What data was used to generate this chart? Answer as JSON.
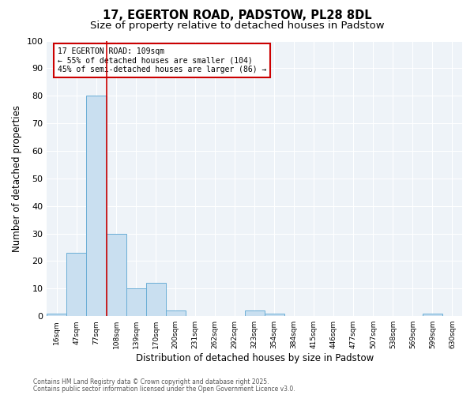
{
  "title1": "17, EGERTON ROAD, PADSTOW, PL28 8DL",
  "title2": "Size of property relative to detached houses in Padstow",
  "xlabel": "Distribution of detached houses by size in Padstow",
  "ylabel": "Number of detached properties",
  "bar_labels": [
    "16sqm",
    "47sqm",
    "77sqm",
    "108sqm",
    "139sqm",
    "170sqm",
    "200sqm",
    "231sqm",
    "262sqm",
    "292sqm",
    "323sqm",
    "354sqm",
    "384sqm",
    "415sqm",
    "446sqm",
    "477sqm",
    "507sqm",
    "538sqm",
    "569sqm",
    "599sqm",
    "630sqm"
  ],
  "bar_values": [
    1,
    23,
    80,
    30,
    10,
    12,
    2,
    0,
    0,
    0,
    2,
    1,
    0,
    0,
    0,
    0,
    0,
    0,
    0,
    1,
    0
  ],
  "bar_color": "#c9dff0",
  "bar_edge_color": "#6aaed6",
  "red_line_x": 2.5,
  "annotation_title": "17 EGERTON ROAD: 109sqm",
  "annotation_line2": "← 55% of detached houses are smaller (104)",
  "annotation_line3": "45% of semi-detached houses are larger (86) →",
  "annotation_box_color": "#cc0000",
  "ylim": [
    0,
    100
  ],
  "yticks": [
    0,
    10,
    20,
    30,
    40,
    50,
    60,
    70,
    80,
    90,
    100
  ],
  "footer1": "Contains HM Land Registry data © Crown copyright and database right 2025.",
  "footer2": "Contains public sector information licensed under the Open Government Licence v3.0.",
  "bg_color": "#eef3f8",
  "title_fontsize": 10.5,
  "subtitle_fontsize": 9.5,
  "grid_color": "#ffffff"
}
